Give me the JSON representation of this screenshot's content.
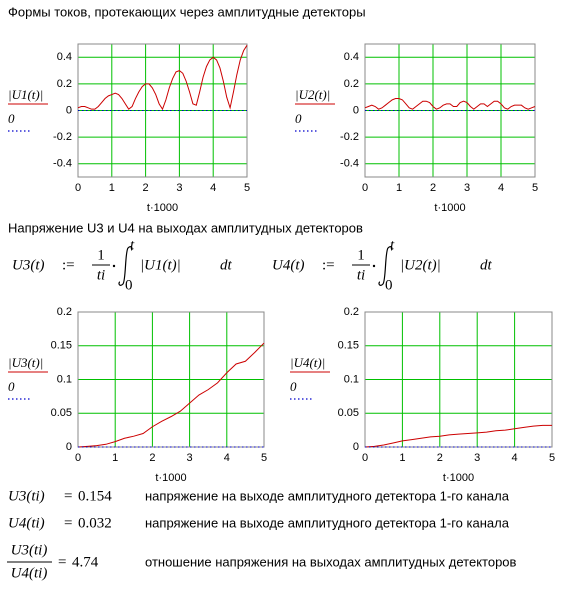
{
  "heading1": "Формы токов, протекающих через амплитудные детекторы",
  "heading2": "Напряжение U3 и U4 на выходах амплитудных детекторов",
  "formulas": [
    {
      "lhs": "U3(t)",
      "assign": ":=",
      "num": "1",
      "den": "ti",
      "upper": "t",
      "lower": "0",
      "integrand": "|U1(t)|",
      "d": "dt"
    },
    {
      "lhs": "U4(t)",
      "assign": ":=",
      "num": "1",
      "den": "ti",
      "upper": "t",
      "lower": "0",
      "integrand": "|U2(t)|",
      "d": "dt"
    }
  ],
  "results": [
    {
      "lhs": "U3(ti)",
      "eq": "=",
      "value": 0.154,
      "note": "напряжение на выходе амплитудного детектора 1-го канала"
    },
    {
      "lhs": "U4(ti)",
      "eq": "=",
      "value": 0.032,
      "note": "напряжение на выходе амплитудного детектора 1-го канала"
    }
  ],
  "ratio": {
    "num": "U3(ti)",
    "den": "U4(ti)",
    "eq": "=",
    "value": 4.74,
    "note": "отношение напряжения на выходах амплитудных детекторов"
  },
  "chart_data": [
    {
      "type": "line",
      "xlabel": "t·1000",
      "xlim": [
        0,
        5
      ],
      "xticks": [
        0,
        1,
        2,
        3,
        4,
        5
      ],
      "ylim": [
        -0.5,
        0.5
      ],
      "yticks": [
        0.4,
        0.2,
        0,
        -0.2,
        -0.4
      ],
      "grid": true,
      "x": [
        0,
        0.1,
        0.2,
        0.3,
        0.4,
        0.5,
        0.6,
        0.7,
        0.8,
        0.9,
        1,
        1.1,
        1.2,
        1.3,
        1.4,
        1.5,
        1.6,
        1.7,
        1.8,
        1.9,
        2,
        2.1,
        2.2,
        2.3,
        2.4,
        2.5,
        2.6,
        2.7,
        2.8,
        2.9,
        3,
        3.1,
        3.2,
        3.3,
        3.4,
        3.5,
        3.6,
        3.7,
        3.8,
        3.9,
        4,
        4.1,
        4.2,
        4.3,
        4.4,
        4.5,
        4.6,
        4.7,
        4.8,
        4.9,
        5
      ],
      "series": [
        {
          "name": "|U1(t)|",
          "color": "#cc0000",
          "values": [
            0.02,
            0.03,
            0.03,
            0.02,
            0.01,
            0.01,
            0.03,
            0.06,
            0.09,
            0.11,
            0.12,
            0.13,
            0.12,
            0.09,
            0.05,
            0.01,
            0.03,
            0.09,
            0.14,
            0.18,
            0.2,
            0.2,
            0.17,
            0.12,
            0.05,
            0.01,
            0.08,
            0.17,
            0.24,
            0.29,
            0.3,
            0.28,
            0.22,
            0.14,
            0.05,
            0.04,
            0.14,
            0.25,
            0.33,
            0.38,
            0.4,
            0.38,
            0.32,
            0.22,
            0.1,
            0.02,
            0.14,
            0.27,
            0.38,
            0.45,
            0.49
          ]
        },
        {
          "name": "0",
          "color": "#0000cc",
          "dashed": true,
          "x": [
            0,
            5
          ],
          "values": [
            0,
            0
          ]
        }
      ]
    },
    {
      "type": "line",
      "xlabel": "t·1000",
      "xlim": [
        0,
        5
      ],
      "xticks": [
        0,
        1,
        2,
        3,
        4,
        5
      ],
      "ylim": [
        -0.5,
        0.5
      ],
      "yticks": [
        0.4,
        0.2,
        0,
        -0.2,
        -0.4
      ],
      "grid": true,
      "x": [
        0,
        0.1,
        0.2,
        0.3,
        0.4,
        0.5,
        0.6,
        0.7,
        0.8,
        0.9,
        1,
        1.1,
        1.2,
        1.3,
        1.4,
        1.5,
        1.6,
        1.7,
        1.8,
        1.9,
        2,
        2.1,
        2.2,
        2.3,
        2.4,
        2.5,
        2.6,
        2.7,
        2.8,
        2.9,
        3,
        3.1,
        3.2,
        3.3,
        3.4,
        3.5,
        3.6,
        3.7,
        3.8,
        3.9,
        4,
        4.1,
        4.2,
        4.3,
        4.4,
        4.5,
        4.6,
        4.7,
        4.8,
        4.9,
        5
      ],
      "series": [
        {
          "name": "|U2(t)|",
          "color": "#cc0000",
          "values": [
            0.02,
            0.03,
            0.04,
            0.03,
            0.01,
            0.02,
            0.04,
            0.06,
            0.08,
            0.09,
            0.09,
            0.08,
            0.05,
            0.02,
            0.01,
            0.03,
            0.05,
            0.07,
            0.07,
            0.06,
            0.03,
            0.01,
            0.02,
            0.04,
            0.05,
            0.05,
            0.03,
            0.03,
            0.06,
            0.07,
            0.06,
            0.03,
            0.01,
            0.03,
            0.05,
            0.05,
            0.03,
            0.05,
            0.07,
            0.07,
            0.05,
            0.02,
            0.01,
            0.03,
            0.04,
            0.04,
            0.04,
            0.02,
            0.01,
            0.02,
            0.03
          ]
        },
        {
          "name": "0",
          "color": "#0000cc",
          "dashed": true,
          "x": [
            0,
            5
          ],
          "values": [
            0,
            0
          ]
        }
      ]
    },
    {
      "type": "line",
      "xlabel": "t·1000",
      "xlim": [
        0,
        5
      ],
      "xticks": [
        0,
        1,
        2,
        3,
        4,
        5
      ],
      "ylim": [
        0,
        0.2
      ],
      "yticks": [
        0.2,
        0.15,
        0.1,
        0.05,
        0
      ],
      "grid": true,
      "x": [
        0,
        0.25,
        0.5,
        0.75,
        1,
        1.25,
        1.5,
        1.75,
        2,
        2.25,
        2.5,
        2.75,
        3,
        3.25,
        3.5,
        3.75,
        4,
        4.25,
        4.5,
        4.75,
        5
      ],
      "series": [
        {
          "name": "|U3(t)|",
          "color": "#cc0000",
          "values": [
            0,
            0.001,
            0.002,
            0.004,
            0.008,
            0.013,
            0.016,
            0.02,
            0.03,
            0.038,
            0.045,
            0.053,
            0.065,
            0.077,
            0.085,
            0.095,
            0.11,
            0.123,
            0.127,
            0.14,
            0.154
          ]
        },
        {
          "name": "0",
          "color": "#0000cc",
          "dashed": true,
          "x": [
            0,
            5
          ],
          "values": [
            0,
            0
          ]
        }
      ]
    },
    {
      "type": "line",
      "xlabel": "t·1000",
      "xlim": [
        0,
        5
      ],
      "xticks": [
        0,
        1,
        2,
        3,
        4,
        5
      ],
      "ylim": [
        0,
        0.2
      ],
      "yticks": [
        0.2,
        0.15,
        0.1,
        0.05,
        0
      ],
      "grid": true,
      "x": [
        0,
        0.25,
        0.5,
        0.75,
        1,
        1.25,
        1.5,
        1.75,
        2,
        2.25,
        2.5,
        2.75,
        3,
        3.25,
        3.5,
        3.75,
        4,
        4.25,
        4.5,
        4.75,
        5
      ],
      "series": [
        {
          "name": "|U4(t)|",
          "color": "#cc0000",
          "values": [
            0,
            0.001,
            0.003,
            0.006,
            0.009,
            0.011,
            0.013,
            0.015,
            0.016,
            0.018,
            0.019,
            0.02,
            0.021,
            0.022,
            0.024,
            0.025,
            0.027,
            0.029,
            0.031,
            0.032,
            0.032
          ]
        },
        {
          "name": "0",
          "color": "#0000cc",
          "dashed": true,
          "x": [
            0,
            5
          ],
          "values": [
            0,
            0
          ]
        }
      ]
    }
  ]
}
